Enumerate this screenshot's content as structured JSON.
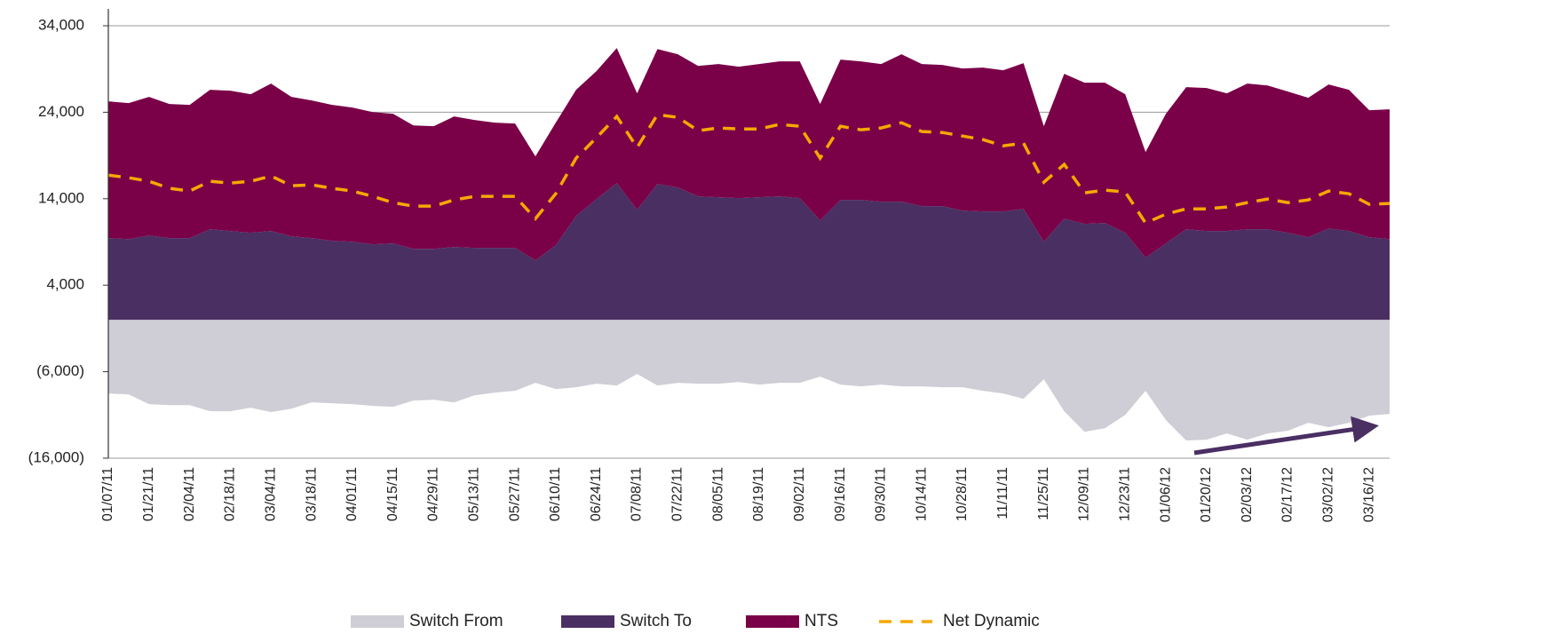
{
  "chart_data": {
    "type": "area",
    "stacked": true,
    "categories": [
      "01/07/11",
      null,
      "01/21/11",
      null,
      "02/04/11",
      null,
      "02/18/11",
      null,
      "03/04/11",
      null,
      "03/18/11",
      null,
      "04/01/11",
      null,
      "04/15/11",
      null,
      "04/29/11",
      null,
      "05/13/11",
      null,
      "05/27/11",
      null,
      "06/10/11",
      null,
      "06/24/11",
      null,
      "07/08/11",
      null,
      "07/22/11",
      null,
      "08/05/11",
      null,
      "08/19/11",
      null,
      "09/02/11",
      null,
      "09/16/11",
      null,
      "09/30/11",
      null,
      "10/14/11",
      null,
      "10/28/11",
      null,
      "11/11/11",
      null,
      "11/25/11",
      null,
      "12/09/11",
      null,
      "12/23/11",
      null,
      "01/06/12",
      null,
      "01/20/12",
      null,
      "02/03/12",
      null,
      "02/17/12",
      null,
      "03/02/12",
      null,
      "03/16/12",
      null
    ],
    "ylim": [
      -16000,
      34000
    ],
    "yticks": [
      {
        "value": 34000,
        "label": "34,000"
      },
      {
        "value": 24000,
        "label": "24,000"
      },
      {
        "value": 14000,
        "label": "14,000"
      },
      {
        "value": 4000,
        "label": "4,000"
      },
      {
        "value": -6000,
        "label": "(6,000)"
      },
      {
        "value": -16000,
        "label": "(16,000)"
      }
    ],
    "grid": true,
    "legend": "bottom",
    "series": [
      {
        "name": "Switch From",
        "color": "#cfcdd5",
        "values": [
          -8520,
          -8620,
          -9750,
          -9860,
          -9860,
          -10570,
          -10570,
          -10160,
          -10680,
          -10270,
          -9550,
          -9650,
          -9750,
          -9960,
          -10060,
          -9340,
          -9240,
          -9550,
          -8730,
          -8420,
          -8210,
          -7290,
          -8010,
          -7800,
          -7390,
          -7600,
          -6260,
          -7600,
          -7290,
          -7390,
          -7390,
          -7190,
          -7490,
          -7290,
          -7290,
          -6570,
          -7490,
          -7700,
          -7490,
          -7700,
          -7700,
          -7800,
          -7800,
          -8210,
          -8520,
          -9140,
          -6880,
          -10570,
          -12940,
          -12530,
          -10990,
          -8210,
          -11600,
          -13960,
          -13860,
          -13140,
          -13860,
          -13140,
          -12830,
          -11910,
          -12420,
          -11910,
          -11090,
          -10880
        ]
      },
      {
        "name": "Switch To",
        "color": "#4a2f63",
        "values": [
          9450,
          9340,
          9750,
          9450,
          9450,
          10470,
          10270,
          10060,
          10270,
          9650,
          9450,
          9140,
          9030,
          8730,
          8830,
          8210,
          8210,
          8420,
          8320,
          8320,
          8320,
          6880,
          8620,
          12010,
          13960,
          15810,
          12730,
          15710,
          15300,
          14270,
          14170,
          14070,
          14170,
          14270,
          14070,
          11500,
          13860,
          13860,
          13660,
          13660,
          13140,
          13140,
          12630,
          12530,
          12530,
          12830,
          9030,
          11700,
          11090,
          11190,
          10060,
          7190,
          8830,
          10470,
          10270,
          10270,
          10470,
          10470,
          10060,
          9550,
          10570,
          10270,
          9550,
          9340
        ]
      },
      {
        "name": "NTS",
        "color": "#7a0048",
        "values": [
          15810,
          15710,
          16020,
          15500,
          15400,
          16120,
          16220,
          16020,
          17040,
          16120,
          15910,
          15710,
          15510,
          15290,
          14990,
          14270,
          14170,
          15090,
          14780,
          14470,
          14370,
          12010,
          14170,
          14580,
          14790,
          15610,
          13450,
          15600,
          15400,
          15090,
          15400,
          15190,
          15400,
          15610,
          15810,
          13450,
          16220,
          16020,
          15910,
          17040,
          16430,
          16330,
          16430,
          16630,
          16320,
          16840,
          13350,
          16740,
          16320,
          16220,
          16020,
          12210,
          14990,
          16430,
          16530,
          15910,
          16840,
          16630,
          16330,
          16120,
          16640,
          16320,
          14680,
          14990
        ]
      },
      {
        "name": "Net Dynamic",
        "color": "#f5a800",
        "type": "line",
        "dashed": true,
        "values": [
          16730,
          16430,
          16020,
          15200,
          14890,
          16020,
          15810,
          16020,
          16630,
          15500,
          15610,
          15200,
          14890,
          14270,
          13550,
          13140,
          13140,
          13860,
          14270,
          14270,
          14270,
          11700,
          14580,
          18690,
          21050,
          23510,
          19920,
          23720,
          23410,
          21870,
          22180,
          22070,
          22070,
          22590,
          22380,
          18690,
          22380,
          21970,
          22180,
          22790,
          21770,
          21660,
          21250,
          20840,
          20120,
          20430,
          15910,
          17970,
          14680,
          14990,
          14780,
          11190,
          12220,
          12830,
          12830,
          13040,
          13550,
          13960,
          13550,
          13860,
          14890,
          14580,
          13350,
          13450
        ]
      }
    ]
  }
}
